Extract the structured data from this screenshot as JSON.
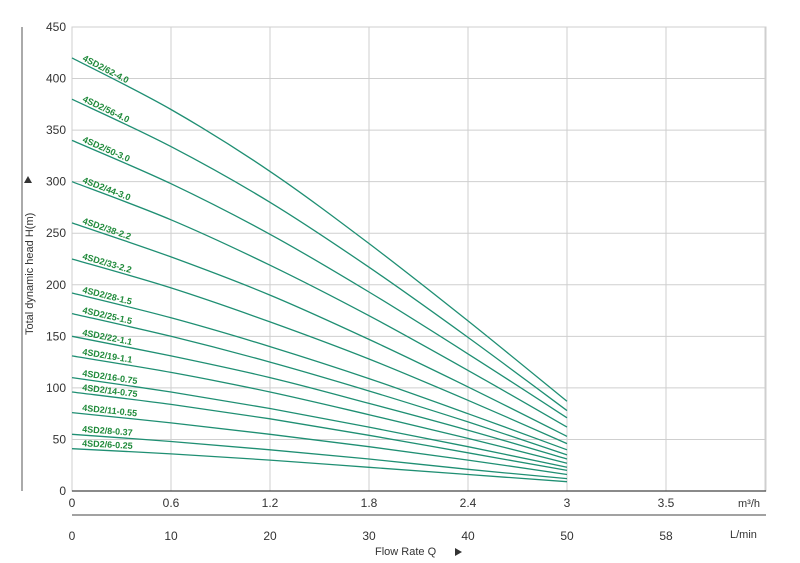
{
  "chart_data": {
    "type": "line",
    "title": "",
    "ylabel": "Total dynamic head H(m)",
    "xlabel": "Flow Rate Q",
    "ylim": [
      0,
      450
    ],
    "y_ticks": [
      "0",
      "50",
      "100",
      "150",
      "200",
      "250",
      "300",
      "350",
      "400",
      "450"
    ],
    "x_range_m3h": [
      0,
      3
    ],
    "x_ticks_m3h": [
      "0",
      "0.6",
      "1.2",
      "1.8",
      "2.4",
      "3",
      "3.5"
    ],
    "x_unit_m3h": "m³/h",
    "x_ticks_lmin": [
      "0",
      "10",
      "20",
      "30",
      "40",
      "50",
      "58"
    ],
    "x_unit_lmin": "L/min",
    "grid": true,
    "line_color": "#1f8f73",
    "label_color": "#1f8a3a",
    "series": [
      {
        "name": "4SD2/62-4.0",
        "x": [
          0,
          0.6,
          1.2,
          1.8,
          2.4,
          3
        ],
        "y": [
          420,
          370,
          310,
          240,
          165,
          87
        ]
      },
      {
        "name": "4SD2/56-4.0",
        "x": [
          0,
          0.6,
          1.2,
          1.8,
          2.4,
          3
        ],
        "y": [
          380,
          334,
          280,
          217,
          149,
          78
        ]
      },
      {
        "name": "4SD2/50-3.0",
        "x": [
          0,
          0.6,
          1.2,
          1.8,
          2.4,
          3
        ],
        "y": [
          340,
          298,
          249,
          193,
          133,
          71
        ]
      },
      {
        "name": "4SD2/44-3.0",
        "x": [
          0,
          0.6,
          1.2,
          1.8,
          2.4,
          3
        ],
        "y": [
          300,
          263,
          219,
          170,
          117,
          62
        ]
      },
      {
        "name": "4SD2/38-2.2",
        "x": [
          0,
          0.6,
          1.2,
          1.8,
          2.4,
          3
        ],
        "y": [
          260,
          227,
          190,
          147,
          101,
          53
        ]
      },
      {
        "name": "4SD2/33-2.2",
        "x": [
          0,
          0.6,
          1.2,
          1.8,
          2.4,
          3
        ],
        "y": [
          225,
          197,
          164,
          128,
          88,
          46
        ]
      },
      {
        "name": "4SD2/28-1.5",
        "x": [
          0,
          0.6,
          1.2,
          1.8,
          2.4,
          3
        ],
        "y": [
          192,
          168,
          140,
          109,
          75,
          40
        ]
      },
      {
        "name": "4SD2/25-1.5",
        "x": [
          0,
          0.6,
          1.2,
          1.8,
          2.4,
          3
        ],
        "y": [
          172,
          150,
          125,
          97,
          67,
          35
        ]
      },
      {
        "name": "4SD2/22-1.1",
        "x": [
          0,
          0.6,
          1.2,
          1.8,
          2.4,
          3
        ],
        "y": [
          150,
          131,
          110,
          85,
          59,
          31
        ]
      },
      {
        "name": "4SD2/19-1.1",
        "x": [
          0,
          0.6,
          1.2,
          1.8,
          2.4,
          3
        ],
        "y": [
          131,
          115,
          96,
          74,
          51,
          27
        ]
      },
      {
        "name": "4SD2/16-0.75",
        "x": [
          0,
          0.6,
          1.2,
          1.8,
          2.4,
          3
        ],
        "y": [
          110,
          96,
          80,
          62,
          43,
          23
        ]
      },
      {
        "name": "4SD2/14-0.75",
        "x": [
          0,
          0.6,
          1.2,
          1.8,
          2.4,
          3
        ],
        "y": [
          96,
          84,
          70,
          54,
          37,
          20
        ]
      },
      {
        "name": "4SD2/11-0.55",
        "x": [
          0,
          0.6,
          1.2,
          1.8,
          2.4,
          3
        ],
        "y": [
          76,
          66,
          55,
          43,
          30,
          16
        ]
      },
      {
        "name": "4SD2/8-0.37",
        "x": [
          0,
          0.6,
          1.2,
          1.8,
          2.4,
          3
        ],
        "y": [
          55,
          48,
          40,
          31,
          21,
          12
        ]
      },
      {
        "name": "4SD2/6-0.25",
        "x": [
          0,
          0.6,
          1.2,
          1.8,
          2.4,
          3
        ],
        "y": [
          41,
          36,
          30,
          23,
          16,
          9
        ]
      }
    ]
  }
}
